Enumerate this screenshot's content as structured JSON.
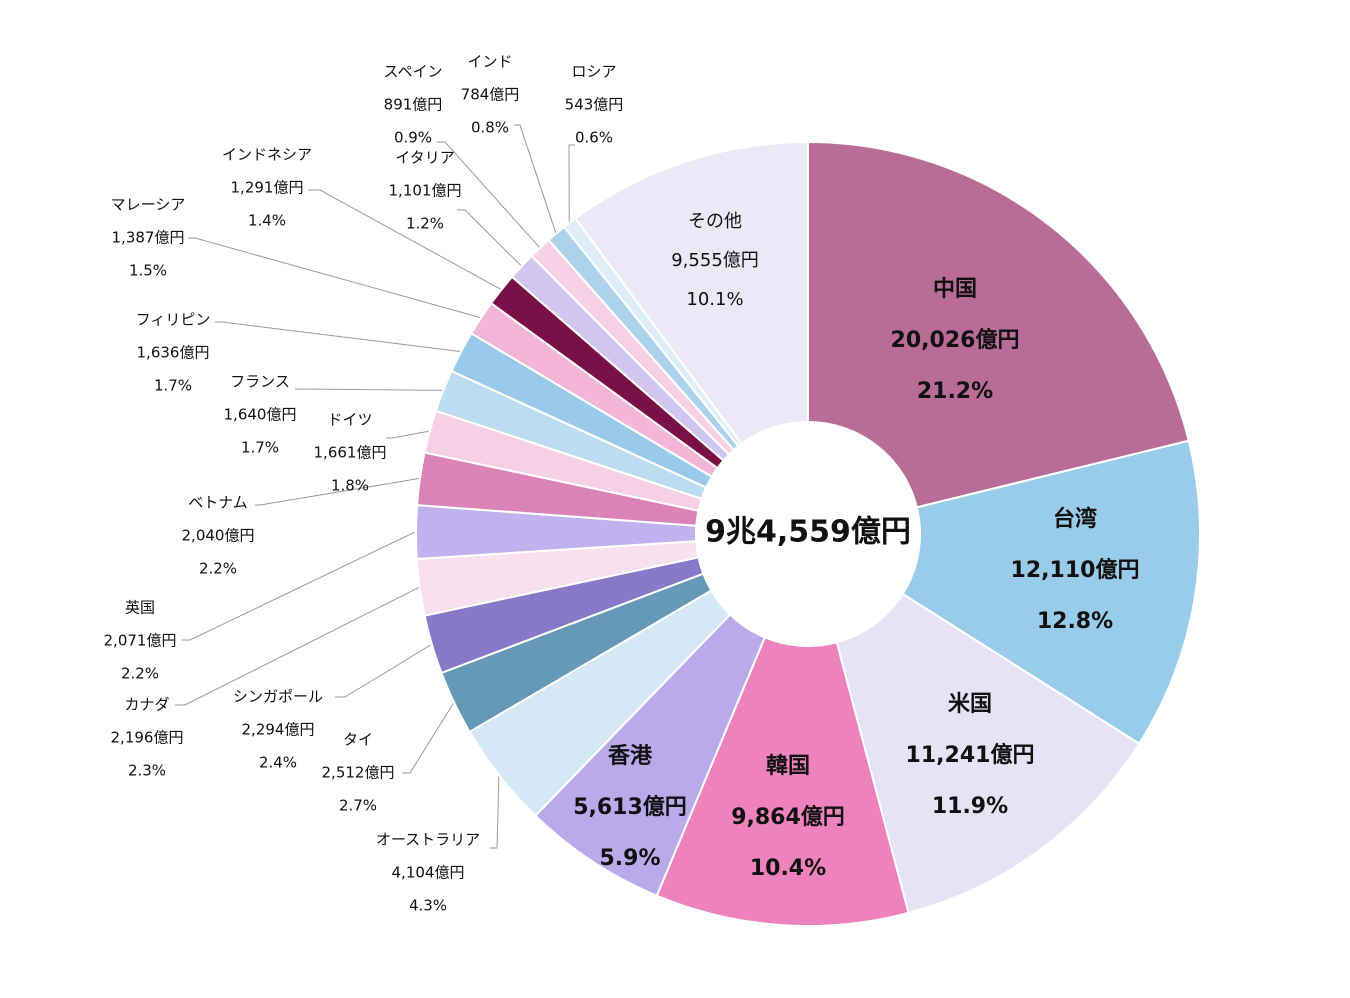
{
  "chart_data": {
    "type": "donut",
    "center_label": "9兆4,559億円",
    "categories": [
      "中国",
      "台湾",
      "米国",
      "韓国",
      "香港",
      "オーストラリア",
      "タイ",
      "シンガポール",
      "カナダ",
      "英国",
      "ベトナム",
      "ドイツ",
      "フランス",
      "フィリピン",
      "マレーシア",
      "インドネシア",
      "イタリア",
      "スペイン",
      "インド",
      "ロシア",
      "その他"
    ],
    "values": [
      20026,
      12110,
      11241,
      9864,
      5613,
      4104,
      2512,
      2294,
      2196,
      2071,
      2040,
      1661,
      1640,
      1636,
      1387,
      1291,
      1101,
      891,
      784,
      543,
      9555
    ],
    "value_labels": [
      "20,026億円",
      "12,110億円",
      "11,241億円",
      "9,864億円",
      "5,613億円",
      "4,104億円",
      "2,512億円",
      "2,294億円",
      "2,196億円",
      "2,071億円",
      "2,040億円",
      "1,661億円",
      "1,640億円",
      "1,636億円",
      "1,387億円",
      "1,291億円",
      "1,101億円",
      "891億円",
      "784億円",
      "543億円",
      "9,555億円"
    ],
    "percentages": [
      21.2,
      12.8,
      11.9,
      10.4,
      5.9,
      4.3,
      2.7,
      2.4,
      2.3,
      2.2,
      2.2,
      1.8,
      1.7,
      1.7,
      1.5,
      1.4,
      1.2,
      0.9,
      0.8,
      0.6,
      10.1
    ],
    "percentage_labels": [
      "21.2%",
      "12.8%",
      "11.9%",
      "10.4%",
      "5.9%",
      "4.3%",
      "2.7%",
      "2.4%",
      "2.3%",
      "2.2%",
      "2.2%",
      "1.8%",
      "1.7%",
      "1.7%",
      "1.5%",
      "1.4%",
      "1.2%",
      "0.9%",
      "0.8%",
      "0.6%",
      "10.1%"
    ],
    "colors": [
      "#b96c97",
      "#99ccea",
      "#e7e3f7",
      "#ee82bd",
      "#b8aaeb",
      "#d4e8f5",
      "#6699b8",
      "#8878c8",
      "#f9e0ee",
      "#c0b2ee",
      "#db82b6",
      "#f8d0e6",
      "#bcdcf0",
      "#99caea",
      "#f4b6d8",
      "#7a1048",
      "#d0c6f0",
      "#f8d0e6",
      "#acd2ec",
      "#deeef8",
      "#ece8f8"
    ]
  }
}
